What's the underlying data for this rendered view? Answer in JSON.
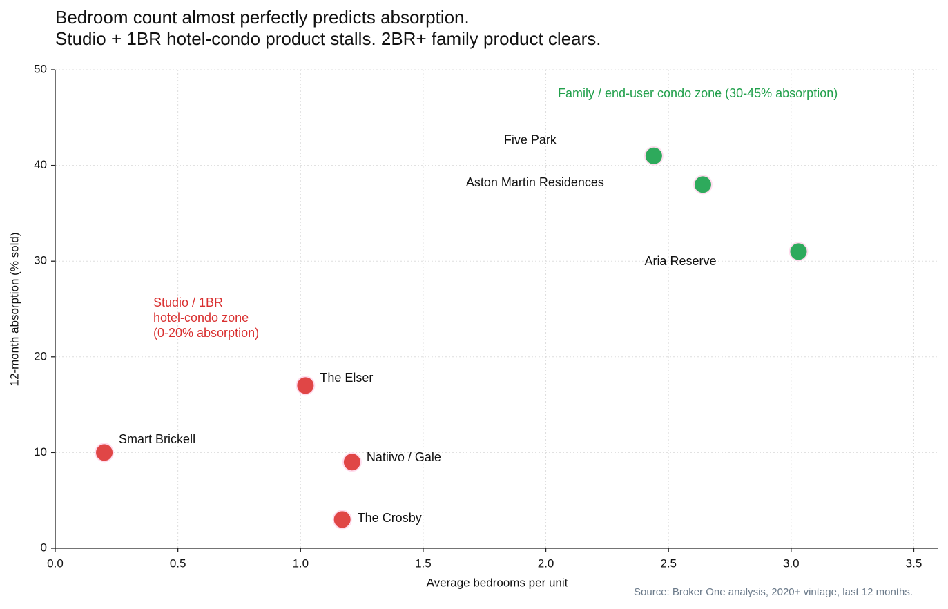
{
  "chart_data": {
    "type": "scatter",
    "title": [
      "Bedroom count almost perfectly predicts absorption.",
      "Studio + 1BR hotel-condo product stalls. 2BR+ family product clears."
    ],
    "x_label": "Average bedrooms per unit",
    "y_label": "12-month absorption (% sold)",
    "source": "Source: Broker One analysis, 2020+ vintage, last 12 months.",
    "xlim": [
      0,
      3.6
    ],
    "ylim": [
      0,
      50
    ],
    "xticks": [
      {
        "value": 0,
        "label": "0.0"
      },
      0.5,
      {
        "value": 1,
        "label": "1.0"
      },
      1.5,
      {
        "value": 2,
        "label": "2.0"
      },
      2.5,
      {
        "value": 3,
        "label": "3.0"
      },
      3.5
    ],
    "yticks": [
      0,
      10,
      20,
      30,
      40,
      50
    ],
    "grid": true,
    "points": [
      {
        "label": "Smart Brickell",
        "x": 0.2,
        "y": 10,
        "color": "#e04646"
      },
      {
        "label": "The Elser",
        "x": 1.02,
        "y": 17,
        "color": "#e04646"
      },
      {
        "label": "Natiivo / Gale",
        "x": 1.21,
        "y": 9,
        "color": "#e04646"
      },
      {
        "label": "The Crosby",
        "x": 1.17,
        "y": 3,
        "color": "#e04646"
      },
      {
        "label": "Five Park",
        "x": 2.44,
        "y": 41,
        "color": "#2eaa5c"
      },
      {
        "label": "Aston Martin Residences",
        "x": 2.64,
        "y": 38,
        "color": "#2eaa5c"
      },
      {
        "label": "Aria Reserve",
        "x": 3.03,
        "y": 31,
        "color": "#2eaa5c"
      }
    ],
    "annotations": [
      {
        "lines": [
          "Studio / 1BR",
          "hotel-condo zone",
          "(0-20% absorption)"
        ],
        "color": "#d93030"
      },
      {
        "lines": [
          "Family / end-user condo zone (30-45% absorption)"
        ],
        "color": "#22a04c"
      }
    ]
  }
}
